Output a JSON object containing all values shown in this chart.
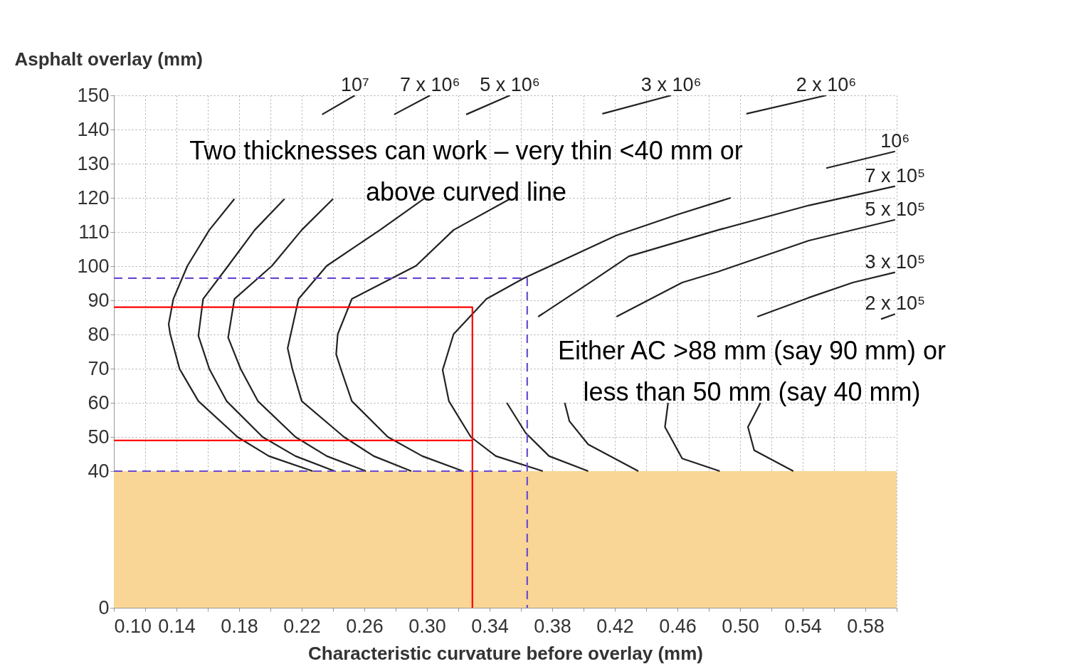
{
  "chart_data": {
    "type": "line",
    "xlabel": "Characteristic curvature before overlay (mm)",
    "ylabel": "Asphalt overlay (mm)",
    "xlim": [
      0.1,
      0.6
    ],
    "ylim": [
      0,
      150
    ],
    "xticks": [
      {
        "value": 0.1,
        "label": "0.10"
      },
      {
        "value": 0.12,
        "label": null
      },
      0.14,
      {
        "value": 0.16,
        "label": null
      },
      0.18,
      {
        "value": 0.2,
        "label": null
      },
      0.22,
      {
        "value": 0.24,
        "label": null
      },
      0.26,
      {
        "value": 0.28,
        "label": null
      },
      {
        "value": 0.3,
        "label": "0.30"
      },
      {
        "value": 0.32,
        "label": null
      },
      0.34,
      {
        "value": 0.36,
        "label": null
      },
      0.38,
      {
        "value": 0.4,
        "label": null
      },
      0.42,
      {
        "value": 0.44,
        "label": null
      },
      0.46,
      {
        "value": 0.48,
        "label": null
      },
      {
        "value": 0.5,
        "label": "0.50"
      },
      {
        "value": 0.52,
        "label": null
      },
      0.54,
      {
        "value": 0.56,
        "label": null
      },
      0.58,
      {
        "value": 0.6,
        "label": null
      }
    ],
    "yticks": [
      0,
      40,
      50,
      60,
      70,
      80,
      90,
      100,
      110,
      120,
      130,
      140,
      150
    ],
    "grid": true,
    "bands": [
      {
        "axis": "y",
        "from": 0,
        "to": 40,
        "color": "#f9d695"
      }
    ],
    "annotations": [
      "Two thicknesses can work – very thin <40 mm or\nabove curved line",
      "Either AC >88 mm (say 90 mm) or\nless than 50 mm (say 40 mm)"
    ],
    "series": [
      {
        "name": "10⁷",
        "color": "#222222",
        "x": [
          0.254,
          0.233,
          0.2,
          0.177,
          0.161,
          0.147,
          0.138,
          0.135,
          0.136,
          0.142,
          0.154,
          0.179,
          0.199,
          0.227
        ],
        "values": [
          150,
          144.4,
          null,
          119.7,
          110.6,
          100.1,
          90.4,
          83.0,
          80.1,
          69.9,
          60.5,
          50.0,
          44.4,
          40
        ]
      },
      {
        "name": "7 x 10⁶",
        "color": "#222222",
        "x": [
          0.302,
          0.279,
          0.25,
          0.209,
          0.19,
          0.173,
          0.157,
          0.154,
          0.161,
          0.172,
          0.195,
          0.216,
          0.241
        ],
        "values": [
          150,
          144.4,
          null,
          119.7,
          110.6,
          100.1,
          90.4,
          79.6,
          69.9,
          60.5,
          50.0,
          44.4,
          40
        ]
      },
      {
        "name": "5 x 10⁶",
        "color": "#222222",
        "x": [
          0.353,
          0.325,
          0.3,
          0.24,
          0.22,
          0.201,
          0.177,
          0.173,
          0.181,
          0.192,
          0.216,
          0.236,
          0.261
        ],
        "values": [
          150,
          144.4,
          null,
          119.7,
          110.6,
          100.1,
          90.4,
          79.1,
          69.9,
          60.5,
          50.0,
          44.4,
          40
        ]
      },
      {
        "name": "3 x 10⁶",
        "color": "#222222",
        "x": [
          0.456,
          0.412,
          0.35,
          0.298,
          0.27,
          0.236,
          0.218,
          0.211,
          0.214,
          0.22,
          0.247,
          0.266,
          0.29
        ],
        "values": [
          150,
          144.6,
          null,
          119.7,
          110.6,
          100.1,
          90.4,
          76.0,
          69.9,
          60.5,
          50.0,
          44.4,
          40
        ]
      },
      {
        "name": "2 x 10⁶",
        "color": "#222222",
        "x": [
          0.555,
          0.504,
          0.4,
          0.353,
          0.317,
          0.293,
          0.252,
          0.243,
          0.242,
          0.245,
          0.252,
          0.275,
          0.297,
          0.323
        ],
        "values": [
          150,
          144.6,
          null,
          119.7,
          110.6,
          100.1,
          90.4,
          80.1,
          74.2,
          69.9,
          60.5,
          50.0,
          44.4,
          40
        ]
      },
      {
        "name": "10⁶",
        "color": "#222222",
        "x": [
          0.599,
          0.555,
          0.52,
          0.494,
          0.46,
          0.421,
          0.362,
          0.338,
          0.317,
          0.31,
          0.314,
          0.328,
          0.344,
          0.374
        ],
        "values": [
          133.6,
          128.7,
          null,
          120.0,
          115.1,
          109.0,
          96.5,
          90.4,
          80.1,
          69.6,
          60.5,
          50.0,
          44.4,
          40
        ]
      },
      {
        "name": "7 x 10⁵",
        "color": "#222222",
        "x": [
          0.599,
          0.544,
          0.486,
          0.429,
          0.404,
          0.371,
          0.36,
          0.351,
          0.363,
          0.378,
          0.403
        ],
        "values": [
          123.4,
          117.8,
          110.6,
          102.9,
          95.2,
          85.2,
          null,
          60.0,
          51.2,
          44.4,
          40
        ]
      },
      {
        "name": "5 x 10⁵",
        "color": "#222222",
        "x": [
          0.599,
          0.544,
          0.486,
          0.463,
          0.421,
          0.4,
          0.388,
          0.391,
          0.403,
          0.435
        ],
        "values": [
          113.6,
          107.5,
          98.4,
          95.2,
          85.2,
          null,
          60.0,
          54.6,
          47.8,
          40
        ]
      },
      {
        "name": "3 x 10⁵",
        "color": "#222222",
        "x": [
          0.599,
          0.572,
          0.544,
          0.511,
          0.48,
          0.454,
          0.452,
          0.463,
          0.487
        ],
        "values": [
          98.2,
          95.2,
          90.8,
          85.2,
          null,
          60.0,
          52.9,
          43.7,
          40
        ]
      },
      {
        "name": "2 x 10⁵",
        "color": "#222222",
        "x": [
          0.599,
          0.59,
          0.55,
          0.513,
          0.505,
          0.509,
          0.534
        ],
        "values": [
          86.0,
          84.5,
          null,
          60.0,
          52.9,
          46.1,
          40
        ]
      },
      {
        "color": "#ff0000",
        "x": [
          0.1,
          0.329,
          0.329,
          0.2,
          0.1,
          0.329
        ],
        "values": [
          88,
          88,
          0,
          null,
          49,
          49
        ]
      },
      {
        "color": "#6a4bd0",
        "line_style": "dashed",
        "x": [
          0.1,
          0.364,
          0.364,
          0.2,
          0.1,
          0.364
        ],
        "values": [
          96.5,
          96.5,
          0,
          null,
          40,
          40
        ]
      }
    ]
  }
}
